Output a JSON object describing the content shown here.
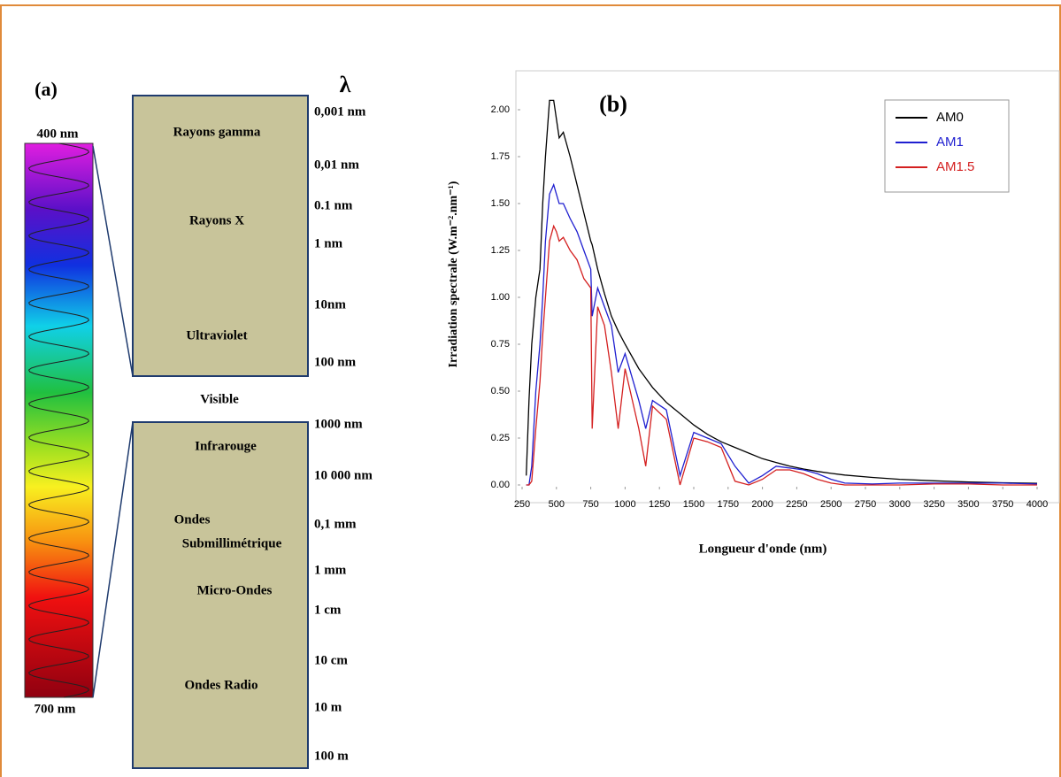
{
  "diagram": {
    "title": "(a)",
    "lambda": "λ",
    "bar_top": "400 nm",
    "bar_bottom": "700 nm",
    "upper_box": [
      "Rayons gamma",
      "Rayons X",
      "Ultraviolet"
    ],
    "visible": "Visible",
    "lower_box": [
      "Infrarouge",
      "Ondes",
      "Submillimétrique",
      "Micro-Ondes",
      "Ondes Radio"
    ],
    "wavelengths": [
      "0,001 nm",
      "0,01 nm",
      "0.1 nm",
      "1 nm",
      "10nm",
      "100 nm",
      "1000 nm",
      "10 000 nm",
      "0,1 mm",
      "1 mm",
      "1 cm",
      "10 cm",
      "10 m",
      "100 m"
    ]
  },
  "chart_data": {
    "type": "line",
    "title": "(b)",
    "x_label": "Longueur d'onde (nm)",
    "y_label": "Irradiation spectrale  (W.m⁻².nm⁻¹)",
    "x": [
      280,
      300,
      320,
      350,
      380,
      400,
      420,
      450,
      480,
      500,
      520,
      550,
      600,
      650,
      700,
      750,
      760,
      800,
      850,
      900,
      950,
      1000,
      1100,
      1150,
      1200,
      1300,
      1400,
      1500,
      1600,
      1700,
      1800,
      1900,
      2000,
      2100,
      2200,
      2300,
      2400,
      2500,
      2600,
      2800,
      3000,
      3250,
      3500,
      3750,
      4000
    ],
    "series": [
      {
        "name": "AM0",
        "color": "#000000",
        "values": [
          0.05,
          0.45,
          0.75,
          1.0,
          1.15,
          1.5,
          1.75,
          2.05,
          2.05,
          1.95,
          1.85,
          1.88,
          1.75,
          1.6,
          1.45,
          1.3,
          1.28,
          1.15,
          1.02,
          0.9,
          0.82,
          0.75,
          0.62,
          0.57,
          0.52,
          0.44,
          0.38,
          0.32,
          0.27,
          0.23,
          0.2,
          0.17,
          0.14,
          0.12,
          0.1,
          0.085,
          0.072,
          0.062,
          0.053,
          0.04,
          0.03,
          0.022,
          0.016,
          0.012,
          0.009
        ]
      },
      {
        "name": "AM1",
        "color": "#1f1fd0",
        "values": [
          0,
          0,
          0.1,
          0.5,
          0.75,
          1.0,
          1.3,
          1.55,
          1.6,
          1.55,
          1.5,
          1.5,
          1.42,
          1.35,
          1.25,
          1.15,
          0.9,
          1.05,
          0.95,
          0.85,
          0.6,
          0.7,
          0.45,
          0.3,
          0.45,
          0.4,
          0.05,
          0.28,
          0.25,
          0.22,
          0.1,
          0.01,
          0.05,
          0.1,
          0.09,
          0.08,
          0.06,
          0.03,
          0.01,
          0.005,
          0.01,
          0.01,
          0.01,
          0.01,
          0.005
        ]
      },
      {
        "name": "AM1.5",
        "color": "#d42020",
        "values": [
          0,
          0,
          0.02,
          0.3,
          0.55,
          0.8,
          1.0,
          1.3,
          1.38,
          1.35,
          1.3,
          1.32,
          1.25,
          1.2,
          1.1,
          1.05,
          0.3,
          0.95,
          0.85,
          0.6,
          0.3,
          0.62,
          0.3,
          0.1,
          0.42,
          0.35,
          0,
          0.25,
          0.23,
          0.2,
          0.02,
          0,
          0.03,
          0.08,
          0.08,
          0.06,
          0.03,
          0.01,
          0,
          0,
          0,
          0.005,
          0.005,
          0,
          0
        ]
      }
    ],
    "xlim": [
      250,
      4000
    ],
    "xticks": [
      250,
      500,
      750,
      1000,
      1250,
      1500,
      1750,
      2000,
      2250,
      2500,
      2750,
      3000,
      3250,
      3500,
      3750,
      4000
    ],
    "ylim": [
      0,
      2.2
    ],
    "yticks": [
      {
        "value": 0,
        "label": "0.00"
      },
      {
        "value": 0.25,
        "label": "0.25"
      },
      {
        "value": 0.5,
        "label": "0.50"
      },
      {
        "value": 0.75,
        "label": "0.75"
      },
      {
        "value": 1,
        "label": "1.00"
      },
      {
        "value": 1.25,
        "label": "1.25"
      },
      {
        "value": 1.5,
        "label": "1.50"
      },
      {
        "value": 1.75,
        "label": "1.75"
      },
      {
        "value": 2,
        "label": "2.00"
      }
    ],
    "legend": "upper right",
    "grid": false
  }
}
